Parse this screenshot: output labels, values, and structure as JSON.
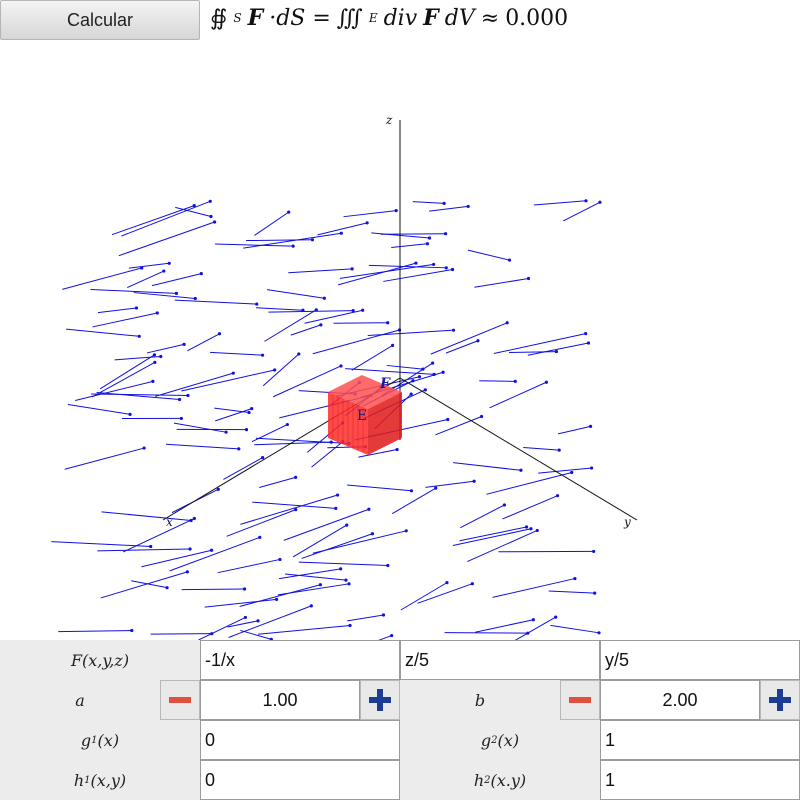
{
  "toolbar": {
    "calc_label": "Calcular"
  },
  "formula": {
    "surface_integral": "∯",
    "surface_sub": "S",
    "field_symbol": "F",
    "dot_ds": "·dS =",
    "volume_integral": "∭",
    "volume_sub": "E",
    "div": "div",
    "dv": "dV",
    "approx": "≈",
    "result": "0.000"
  },
  "plot": {
    "axis_x": "x",
    "axis_y": "y",
    "axis_z": "z",
    "box_label": "E",
    "field_vector_label": "F",
    "colors": {
      "vectors": "#1010e0",
      "box": "#ff2020",
      "axes": "#111111"
    }
  },
  "controls": {
    "field_label": "F(x,y,z)",
    "field_components": [
      "-1/x",
      "z/5",
      "y/5"
    ],
    "a_label": "a",
    "a_value": "1.00",
    "b_label": "b",
    "b_value": "2.00",
    "g1_name": "g",
    "g1_sub": "1",
    "g1_args": "(x)",
    "g1_value": "0",
    "g2_name": "g",
    "g2_sub": "2",
    "g2_args": "(x)",
    "g2_value": "1",
    "h1_name": "h",
    "h1_sub": "1",
    "h1_args": "(x,y)",
    "h1_value": "0",
    "h2_name": "h",
    "h2_sub": "2",
    "h2_args": "(x.y)",
    "h2_value": "1"
  }
}
